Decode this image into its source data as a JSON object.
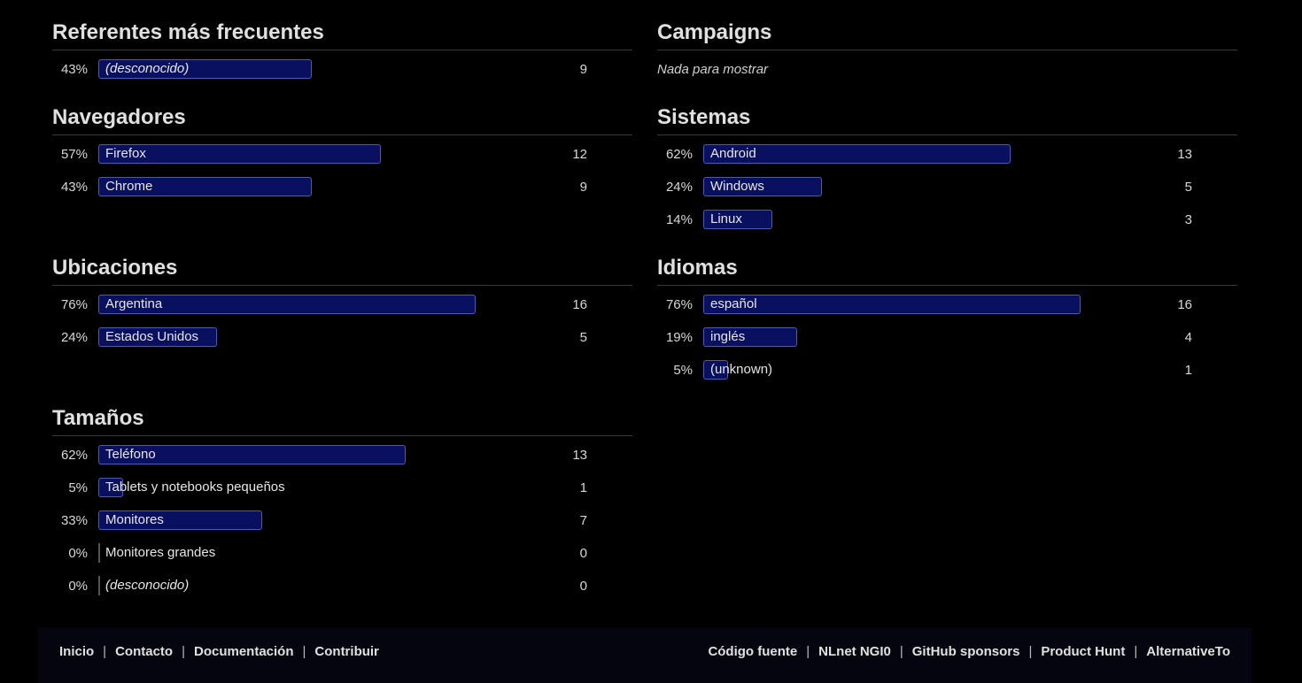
{
  "sections": {
    "referrers": {
      "title": "Referentes más frecuentes",
      "rows": [
        {
          "pct": "43%",
          "label": "(desconocido)",
          "count": "9",
          "fraction": 0.43,
          "italic": true
        }
      ]
    },
    "campaigns": {
      "title": "Campaigns",
      "empty": "Nada para mostrar"
    },
    "browsers": {
      "title": "Navegadores",
      "rows": [
        {
          "pct": "57%",
          "label": "Firefox",
          "count": "12",
          "fraction": 0.57
        },
        {
          "pct": "43%",
          "label": "Chrome",
          "count": "9",
          "fraction": 0.43
        }
      ]
    },
    "systems": {
      "title": "Sistemas",
      "rows": [
        {
          "pct": "62%",
          "label": "Android",
          "count": "13",
          "fraction": 0.62
        },
        {
          "pct": "24%",
          "label": "Windows",
          "count": "5",
          "fraction": 0.24
        },
        {
          "pct": "14%",
          "label": "Linux",
          "count": "3",
          "fraction": 0.14
        }
      ]
    },
    "locations": {
      "title": "Ubicaciones",
      "rows": [
        {
          "pct": "76%",
          "label": "Argentina",
          "count": "16",
          "fraction": 0.76
        },
        {
          "pct": "24%",
          "label": "Estados Unidos",
          "count": "5",
          "fraction": 0.24
        }
      ]
    },
    "languages": {
      "title": "Idiomas",
      "rows": [
        {
          "pct": "76%",
          "label": "español",
          "count": "16",
          "fraction": 0.76
        },
        {
          "pct": "19%",
          "label": "inglés",
          "count": "4",
          "fraction": 0.19
        },
        {
          "pct": "5%",
          "label": "(unknown)",
          "count": "1",
          "fraction": 0.05
        }
      ]
    },
    "sizes": {
      "title": "Tamaños",
      "rows": [
        {
          "pct": "62%",
          "label": "Teléfono",
          "count": "13",
          "fraction": 0.62
        },
        {
          "pct": "5%",
          "label": "Tablets y notebooks pequeños",
          "count": "1",
          "fraction": 0.05
        },
        {
          "pct": "33%",
          "label": "Monitores",
          "count": "7",
          "fraction": 0.33
        },
        {
          "pct": "0%",
          "label": "Monitores grandes",
          "count": "0",
          "fraction": 0
        },
        {
          "pct": "0%",
          "label": "(desconocido)",
          "count": "0",
          "fraction": 0,
          "italic": true
        }
      ]
    }
  },
  "footer": {
    "left": [
      "Inicio",
      "Contacto",
      "Documentación",
      "Contribuir"
    ],
    "right": [
      "Código fuente",
      "NLnet NGI0",
      "GitHub sponsors",
      "Product Hunt",
      "AlternativeTo"
    ]
  },
  "colors": {
    "background": "#000000",
    "bar_fill": "#0a1060",
    "bar_border": "#4a5bb0"
  }
}
